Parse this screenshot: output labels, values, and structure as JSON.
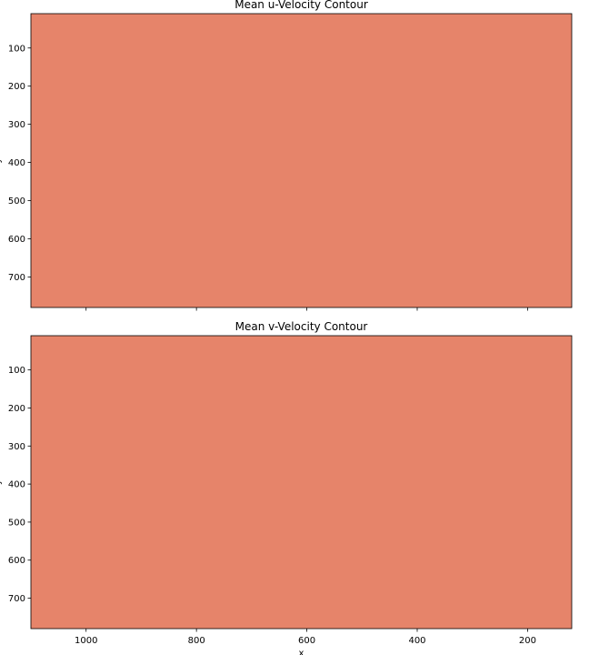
{
  "chart_data": [
    {
      "type": "heatmap",
      "title": "Mean u-Velocity Contour",
      "xlabel": "",
      "ylabel": "y",
      "xlim": [
        1100,
        120
      ],
      "ylim": [
        780,
        10
      ],
      "x_ticks": [
        1000,
        800,
        600,
        400,
        200
      ],
      "y_ticks": [
        100,
        200,
        300,
        400,
        500,
        600,
        700
      ],
      "show_x_tick_labels": false,
      "fill_color": "#e6846a",
      "values": "uniform"
    },
    {
      "type": "heatmap",
      "title": "Mean v-Velocity Contour",
      "xlabel": "x",
      "ylabel": "y",
      "xlim": [
        1100,
        120
      ],
      "ylim": [
        780,
        10
      ],
      "x_ticks": [
        1000,
        800,
        600,
        400,
        200
      ],
      "y_ticks": [
        100,
        200,
        300,
        400,
        500,
        600,
        700
      ],
      "show_x_tick_labels": true,
      "fill_color": "#e6846a",
      "values": "uniform"
    }
  ]
}
